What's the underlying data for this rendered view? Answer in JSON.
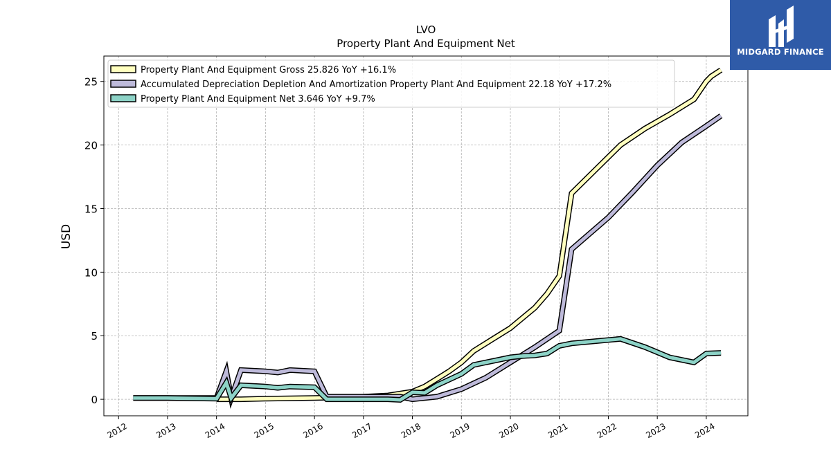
{
  "brand": {
    "name": "MIDGARD FINANCE",
    "background": "#2f5ba8"
  },
  "chart_data": {
    "type": "line",
    "title": "LVO",
    "subtitle": "Property Plant And Equipment Net",
    "xlabel": "",
    "ylabel": "USD",
    "xlim": [
      2011.7,
      2024.85
    ],
    "ylim": [
      -1.3,
      27.0
    ],
    "xticks": [
      2012,
      2013,
      2014,
      2015,
      2016,
      2017,
      2018,
      2019,
      2020,
      2021,
      2022,
      2023,
      2024
    ],
    "yticks": [
      0,
      5,
      10,
      15,
      20,
      25
    ],
    "grid": true,
    "legend_position": "top-left",
    "series": [
      {
        "name": "Property Plant And Equipment Gross",
        "legend_label": "Property Plant And Equipment Gross  25.826 YoY +16.1%",
        "color": "#ffffbf",
        "x": [
          2014.0,
          2014.25,
          2014.5,
          2015.0,
          2016.0,
          2017.0,
          2017.5,
          2018.0,
          2018.25,
          2018.75,
          2019.0,
          2019.25,
          2019.75,
          2020.0,
          2020.5,
          2020.75,
          2021.0,
          2021.25,
          2022.25,
          2022.75,
          2023.25,
          2023.75,
          2024.0,
          2024.1,
          2024.3
        ],
        "y": [
          0.0,
          0.0,
          0.0,
          0.05,
          0.1,
          0.2,
          0.3,
          0.6,
          1.0,
          2.2,
          2.9,
          3.8,
          5.0,
          5.6,
          7.2,
          8.3,
          9.7,
          16.2,
          20.0,
          21.3,
          22.4,
          23.6,
          25.0,
          25.4,
          25.9
        ]
      },
      {
        "name": "Accumulated Depreciation Depletion And Amortization Property Plant And Equipment",
        "legend_label": "Accumulated Depreciation Depletion And Amortization Property Plant And Equipment  22.18 YoY +17.2%",
        "color": "#bebada",
        "x": [
          2012.3,
          2013.0,
          2014.0,
          2014.2,
          2014.3,
          2014.5,
          2015.0,
          2015.25,
          2015.5,
          2016.0,
          2016.25,
          2017.25,
          2017.75,
          2018.0,
          2018.5,
          2019.0,
          2019.5,
          2020.0,
          2020.5,
          2021.0,
          2021.25,
          2022.0,
          2022.5,
          2023.0,
          2023.5,
          2024.0,
          2024.3
        ],
        "y": [
          0.1,
          0.1,
          0.1,
          2.2,
          0.1,
          2.3,
          2.2,
          2.1,
          2.3,
          2.2,
          0.2,
          0.2,
          0.2,
          0.0,
          0.2,
          0.8,
          1.7,
          2.9,
          4.1,
          5.4,
          11.8,
          14.3,
          16.3,
          18.4,
          20.2,
          21.5,
          22.3
        ]
      },
      {
        "name": "Property Plant And Equipment Net",
        "legend_label": "Property Plant And Equipment Net  3.646 YoY +9.7%",
        "color": "#8dd3c7",
        "x": [
          2012.3,
          2013.0,
          2014.0,
          2014.2,
          2014.3,
          2014.5,
          2015.0,
          2015.25,
          2015.5,
          2016.0,
          2016.25,
          2017.0,
          2017.25,
          2017.5,
          2017.75,
          2018.0,
          2018.25,
          2018.5,
          2019.0,
          2019.25,
          2019.75,
          2020.0,
          2020.25,
          2020.5,
          2020.75,
          2021.0,
          2021.25,
          2022.25,
          2022.75,
          2023.25,
          2023.75,
          2024.0,
          2024.3
        ],
        "y": [
          0.1,
          0.1,
          0.05,
          1.3,
          0.1,
          1.1,
          1.0,
          0.9,
          1.0,
          0.95,
          0.0,
          0.0,
          0.0,
          0.0,
          -0.05,
          0.55,
          0.5,
          1.1,
          2.0,
          2.7,
          3.1,
          3.3,
          3.4,
          3.45,
          3.6,
          4.2,
          4.4,
          4.75,
          4.1,
          3.3,
          2.9,
          3.6,
          3.646
        ]
      }
    ]
  }
}
